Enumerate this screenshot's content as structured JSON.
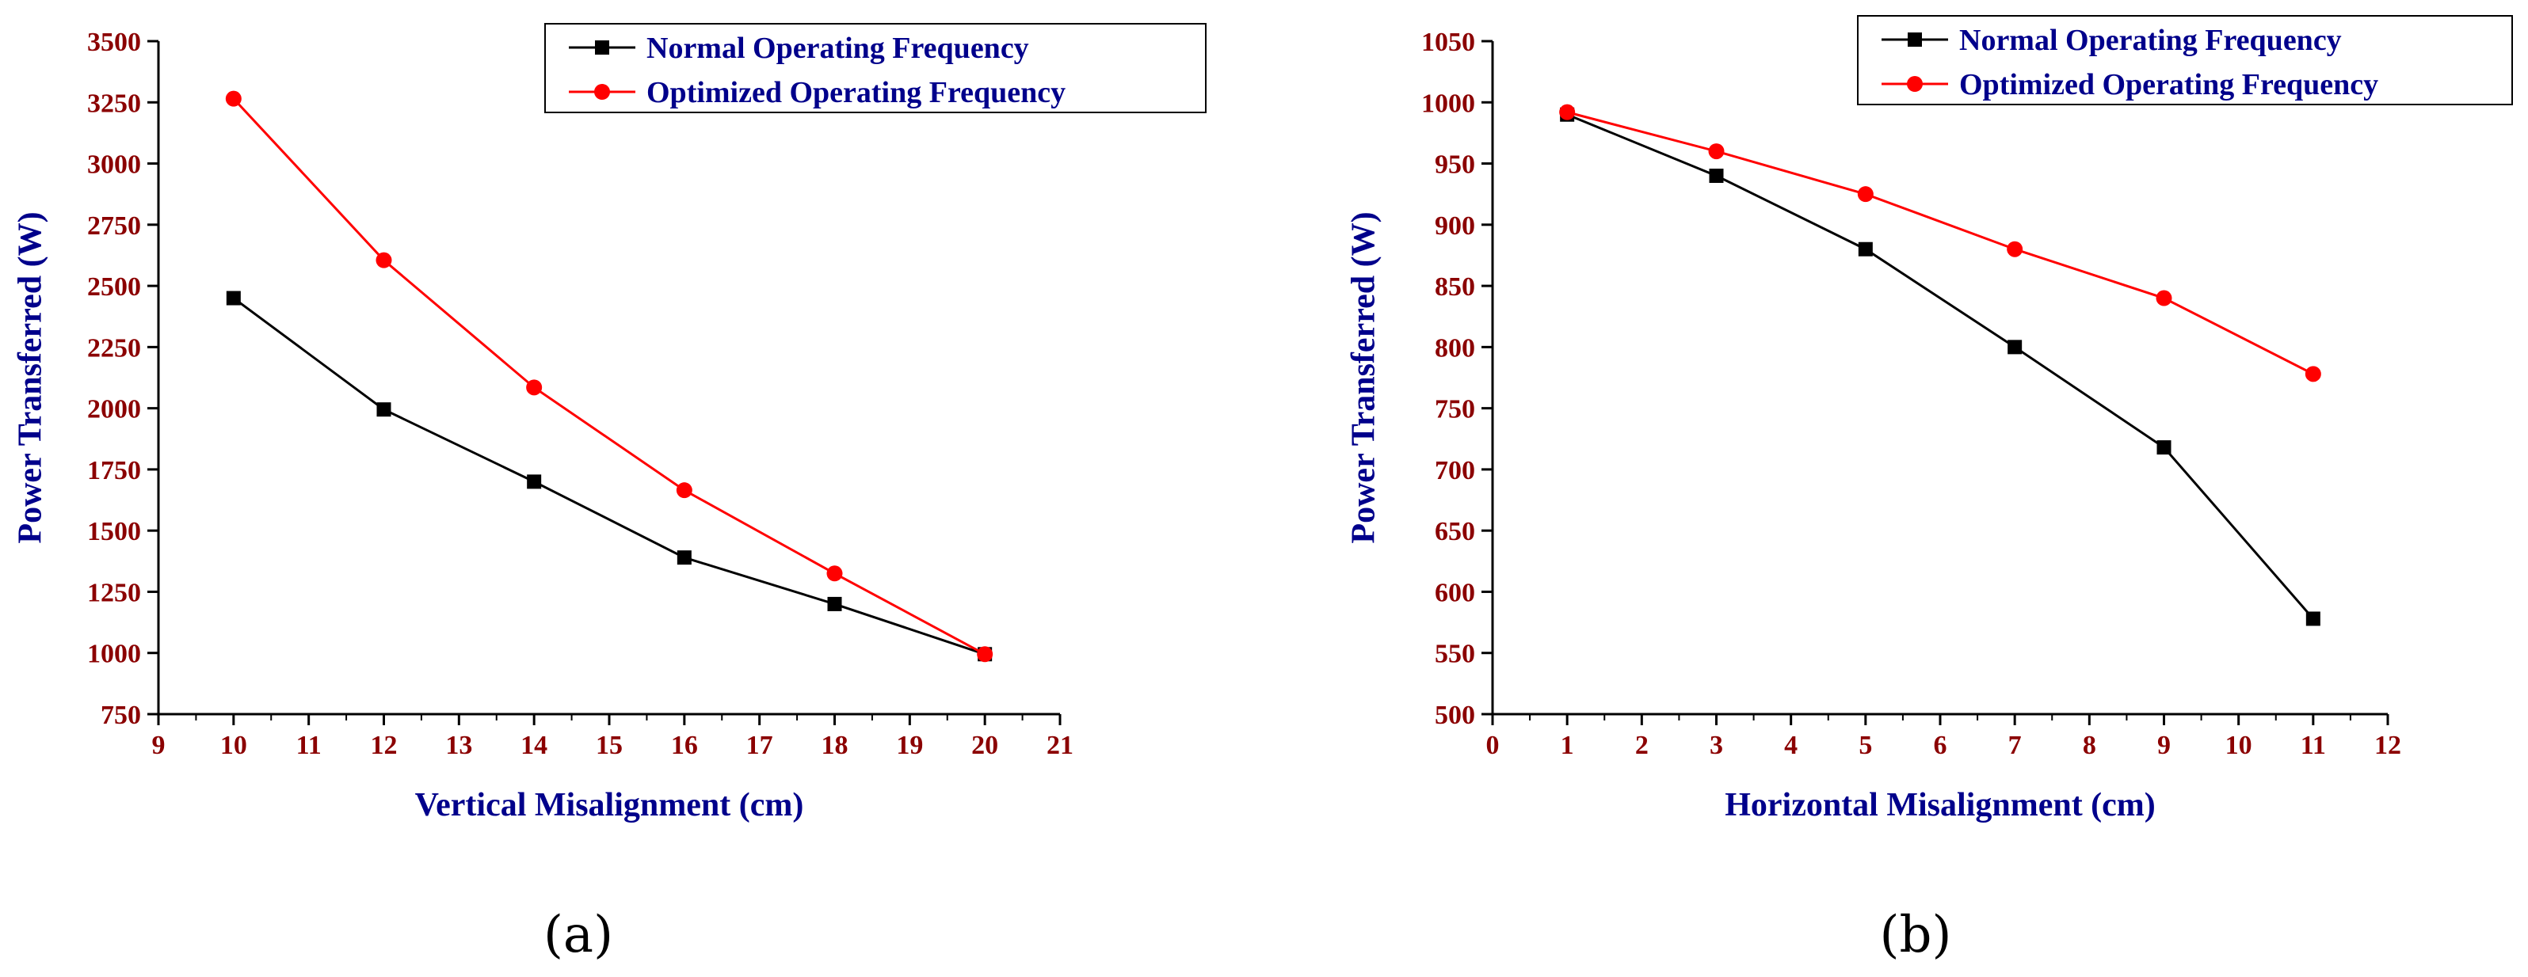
{
  "chart_data": [
    {
      "type": "line",
      "panel_label": "(a)",
      "xlabel": "Vertical Misalignment (cm)",
      "ylabel": "Power Transferred (W)",
      "xlim": [
        9,
        21
      ],
      "ylim": [
        750,
        3500
      ],
      "xticks": [
        "9",
        "10",
        "11",
        "12",
        "13",
        "14",
        "15",
        "16",
        "17",
        "18",
        "19",
        "20",
        "21"
      ],
      "yticks": [
        "750",
        "1000",
        "1250",
        "1500",
        "1750",
        "2000",
        "2250",
        "2500",
        "2750",
        "3000",
        "3250",
        "3500"
      ],
      "legend_position": "top-right",
      "series": [
        {
          "name": "Normal Operating Frequency",
          "color": "#000000",
          "marker": "square",
          "x": [
            10,
            12,
            14,
            16,
            18,
            20
          ],
          "values": [
            2450,
            1995,
            1700,
            1390,
            1200,
            995
          ]
        },
        {
          "name": "Optimized Operating Frequency",
          "color": "#ff0000",
          "marker": "circle",
          "x": [
            10,
            12,
            14,
            16,
            18,
            20
          ],
          "values": [
            3265,
            2605,
            2085,
            1665,
            1325,
            995
          ]
        }
      ]
    },
    {
      "type": "line",
      "panel_label": "(b)",
      "xlabel": "Horizontal Misalignment (cm)",
      "ylabel": "Power Transferred (W)",
      "xlim": [
        0,
        12
      ],
      "ylim": [
        500,
        1050
      ],
      "xticks": [
        "0",
        "1",
        "2",
        "3",
        "4",
        "5",
        "6",
        "7",
        "8",
        "9",
        "10",
        "11",
        "12"
      ],
      "yticks": [
        "500",
        "550",
        "600",
        "650",
        "700",
        "750",
        "800",
        "850",
        "900",
        "950",
        "1000",
        "1050"
      ],
      "legend_position": "top-right",
      "series": [
        {
          "name": "Normal Operating Frequency",
          "color": "#000000",
          "marker": "square",
          "x": [
            1,
            3,
            5,
            7,
            9,
            11
          ],
          "values": [
            990,
            940,
            880,
            800,
            718,
            578
          ]
        },
        {
          "name": "Optimized Operating Frequency",
          "color": "#ff0000",
          "marker": "circle",
          "x": [
            1,
            3,
            5,
            7,
            9,
            11
          ],
          "values": [
            992,
            960,
            925,
            880,
            840,
            778
          ]
        }
      ]
    }
  ]
}
